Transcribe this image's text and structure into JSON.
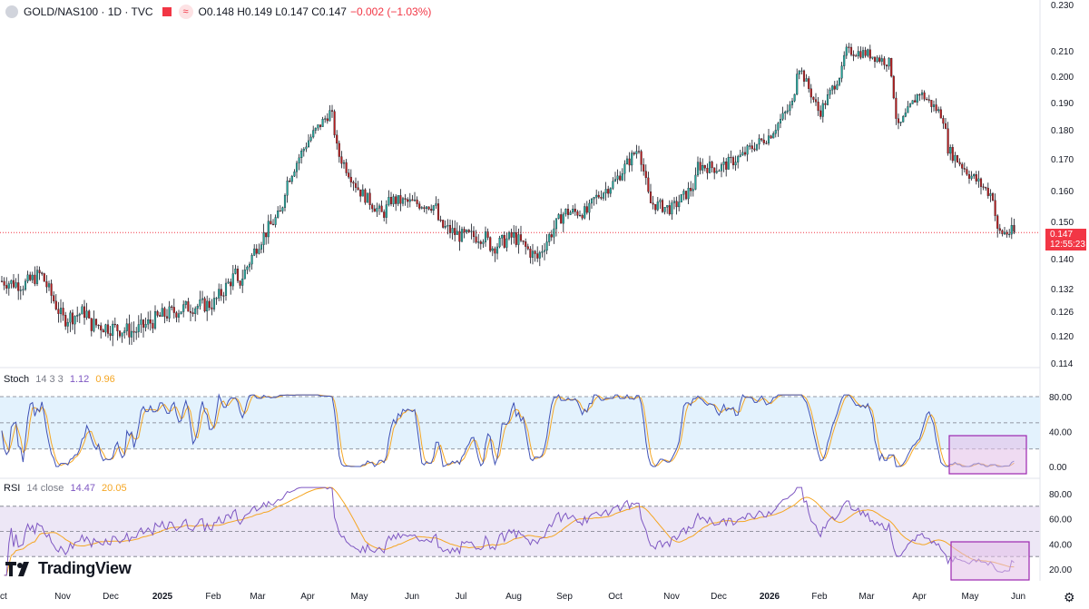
{
  "header": {
    "symbol": "GOLD/NAS100 · 1D · TVC",
    "ohlc": "O0.148 H0.149 L0.147 C0.147",
    "change": "−0.002 (−1.03%)"
  },
  "price_tag": {
    "value": "0.147",
    "countdown": "12:55:23"
  },
  "stoch_label": {
    "name": "Stoch",
    "params": "14 3 3",
    "k": "1.12",
    "d": "0.96"
  },
  "rsi_label": {
    "name": "RSI",
    "params": "14 close",
    "rsi": "14.47",
    "ma": "20.05"
  },
  "logo": "TradingView",
  "colors": {
    "up": "#26a69a",
    "down": "#b71c1c",
    "price_line": "#f23645",
    "stoch_k": "#3f51b5",
    "stoch_d": "#f5a623",
    "rsi": "#7e57c2",
    "rsi_ma": "#f5a623",
    "stoch_band": "#e3f2fd",
    "rsi_band": "#ede7f6",
    "highlight": "#9c27b0"
  },
  "chart_data": {
    "type": "candlestick",
    "x_ticks": [
      "Oct",
      "Nov",
      "Dec",
      "2025",
      "Feb",
      "Mar",
      "Apr",
      "May",
      "Jun",
      "Jul",
      "Aug",
      "Sep",
      "Oct",
      "Nov",
      "Dec",
      "2026",
      "Feb",
      "Mar",
      "Apr",
      "May",
      "Jun"
    ],
    "price_axis": [
      "0.230",
      "0.210",
      "0.200",
      "0.190",
      "0.180",
      "0.170",
      "0.160",
      "0.150",
      "0.140",
      "0.132",
      "0.126",
      "0.120",
      "0.114"
    ],
    "stoch_axis": [
      "80.00",
      "40.00",
      "0.00"
    ],
    "rsi_axis": [
      "80.00",
      "60.00",
      "40.00",
      "20.00"
    ],
    "last_price": 0.147,
    "close_path": [
      [
        "Oct",
        0.134
      ],
      [
        "Oct+",
        0.133
      ],
      [
        "Nov-",
        0.136
      ],
      [
        "Nov",
        0.124
      ],
      [
        "Nov+",
        0.126
      ],
      [
        "Dec-",
        0.123
      ],
      [
        "Dec",
        0.122
      ],
      [
        "Dec+",
        0.121
      ],
      [
        "2025",
        0.125
      ],
      [
        "2025+",
        0.127
      ],
      [
        "Feb",
        0.128
      ],
      [
        "Feb+",
        0.132
      ],
      [
        "Mar-",
        0.136
      ],
      [
        "Mar",
        0.144
      ],
      [
        "Mar+",
        0.153
      ],
      [
        "Apr-",
        0.162
      ],
      [
        "Apr",
        0.176
      ],
      [
        "Apr+",
        0.187
      ],
      [
        "May-",
        0.172
      ],
      [
        "May",
        0.16
      ],
      [
        "May+",
        0.152
      ],
      [
        "Jun-",
        0.157
      ],
      [
        "Jun",
        0.156
      ],
      [
        "Jun+",
        0.155
      ],
      [
        "Jul-",
        0.149
      ],
      [
        "Jul",
        0.146
      ],
      [
        "Jul+",
        0.146
      ],
      [
        "Aug-",
        0.143
      ],
      [
        "Aug",
        0.146
      ],
      [
        "Aug+",
        0.14
      ],
      [
        "Sep-",
        0.143
      ],
      [
        "Sep",
        0.153
      ],
      [
        "Sep+",
        0.153
      ],
      [
        "Oct-",
        0.157
      ],
      [
        "Oct",
        0.163
      ],
      [
        "Oct+",
        0.174
      ],
      [
        "Nov-",
        0.156
      ],
      [
        "Nov",
        0.154
      ],
      [
        "Nov+",
        0.162
      ],
      [
        "Dec-",
        0.168
      ],
      [
        "Dec",
        0.167
      ],
      [
        "Dec+",
        0.171
      ],
      [
        "2026-",
        0.173
      ],
      [
        "2026",
        0.178
      ],
      [
        "2026+",
        0.19
      ],
      [
        "Feb-",
        0.205
      ],
      [
        "Feb",
        0.186
      ],
      [
        "Feb+",
        0.203
      ],
      [
        "Mar-",
        0.21
      ],
      [
        "Mar",
        0.209
      ],
      [
        "Mar+",
        0.205
      ],
      [
        "Apr-",
        0.18
      ],
      [
        "Apr",
        0.194
      ],
      [
        "Apr+",
        0.185
      ],
      [
        "May-",
        0.173
      ],
      [
        "May",
        0.165
      ],
      [
        "May+",
        0.158
      ],
      [
        "Jun-",
        0.147
      ]
    ],
    "stochastic": {
      "k_last": 1.12,
      "d_last": 0.96,
      "upper": 80,
      "middle": 50,
      "lower": 20
    },
    "rsi": {
      "rsi_last": 14.47,
      "ma_last": 20.05,
      "upper": 70,
      "middle": 50,
      "lower": 30
    }
  }
}
